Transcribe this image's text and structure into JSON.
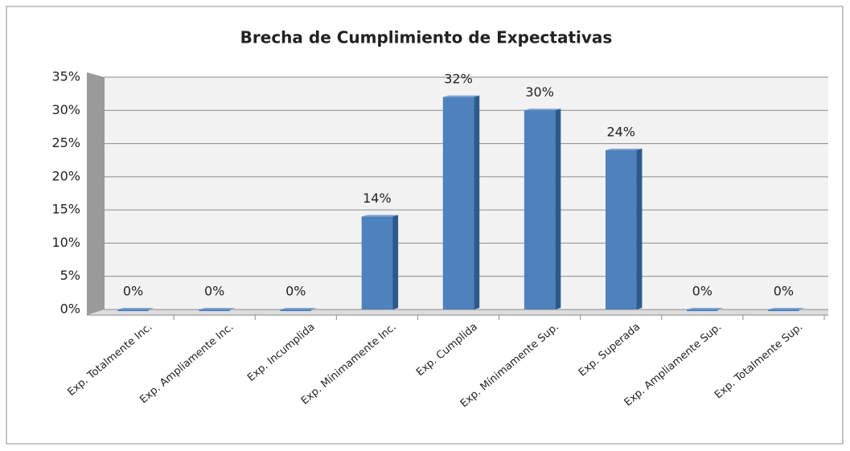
{
  "chart_data": {
    "type": "bar",
    "title": "Brecha de Cumplimiento de Expectativas",
    "categories": [
      "Exp. Totalmente Inc.",
      "Exp. Ampliamente Inc.",
      "Exp. Incumplida",
      "Exp. Mínimamente Inc.",
      "Exp. Cumplida",
      "Exp. Mínimamente Sup.",
      "Exp. Superada",
      "Exp. Ampliamente Sup.",
      "Exp. Totalmente Sup."
    ],
    "values": [
      0,
      0,
      0,
      14,
      32,
      30,
      24,
      0,
      0
    ],
    "value_labels": [
      "0%",
      "0%",
      "0%",
      "14%",
      "32%",
      "30%",
      "24%",
      "0%",
      "0%"
    ],
    "color": "#4f81bd",
    "ylim": [
      0,
      35
    ],
    "yticks": [
      {
        "value": 0,
        "label": "0%"
      },
      {
        "value": 5,
        "label": "5%"
      },
      {
        "value": 10,
        "label": "10%"
      },
      {
        "value": 15,
        "label": "15%"
      },
      {
        "value": 20,
        "label": "20%"
      },
      {
        "value": 25,
        "label": "25%"
      },
      {
        "value": 30,
        "label": "30%"
      },
      {
        "value": 35,
        "label": "35%"
      }
    ],
    "grid": true
  }
}
